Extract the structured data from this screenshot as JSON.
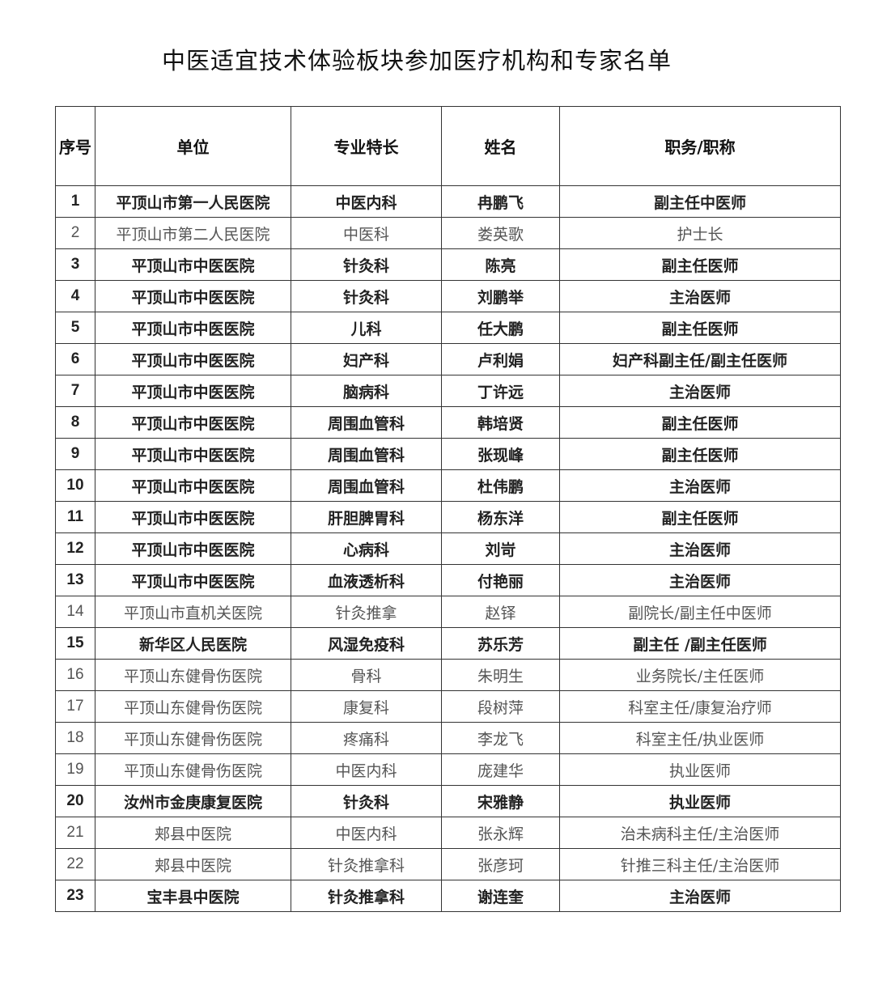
{
  "title": "中医适宜技术体验板块参加医疗机构和专家名单",
  "table": {
    "headers": [
      "序号",
      "单位",
      "专业特长",
      "姓名",
      "职务/职称"
    ],
    "rows": [
      {
        "no": "1",
        "unit": "平顶山市第一人民医院",
        "specialty": "中医内科",
        "name": "冉鹏飞",
        "title": "副主任中医师",
        "bold": true
      },
      {
        "no": "2",
        "unit": "平顶山市第二人民医院",
        "specialty": "中医科",
        "name": "娄英歌",
        "title": "护士长",
        "bold": false
      },
      {
        "no": "3",
        "unit": "平顶山市中医医院",
        "specialty": "针灸科",
        "name": "陈亮",
        "title": "副主任医师",
        "bold": true
      },
      {
        "no": "4",
        "unit": "平顶山市中医医院",
        "specialty": "针灸科",
        "name": "刘鹏举",
        "title": "主治医师",
        "bold": true
      },
      {
        "no": "5",
        "unit": "平顶山市中医医院",
        "specialty": "儿科",
        "name": "任大鹏",
        "title": "副主任医师",
        "bold": true
      },
      {
        "no": "6",
        "unit": "平顶山市中医医院",
        "specialty": "妇产科",
        "name": "卢利娟",
        "title": "妇产科副主任/副主任医师",
        "bold": true
      },
      {
        "no": "7",
        "unit": "平顶山市中医医院",
        "specialty": "脑病科",
        "name": "丁许远",
        "title": "主治医师",
        "bold": true
      },
      {
        "no": "8",
        "unit": "平顶山市中医医院",
        "specialty": "周围血管科",
        "name": "韩培贤",
        "title": "副主任医师",
        "bold": true
      },
      {
        "no": "9",
        "unit": "平顶山市中医医院",
        "specialty": "周围血管科",
        "name": "张现峰",
        "title": "副主任医师",
        "bold": true
      },
      {
        "no": "10",
        "unit": "平顶山市中医医院",
        "specialty": "周围血管科",
        "name": "杜伟鹏",
        "title": "主治医师",
        "bold": true
      },
      {
        "no": "11",
        "unit": "平顶山市中医医院",
        "specialty": "肝胆脾胃科",
        "name": "杨东洋",
        "title": "副主任医师",
        "bold": true
      },
      {
        "no": "12",
        "unit": "平顶山市中医医院",
        "specialty": "心病科",
        "name": "刘岢",
        "title": "主治医师",
        "bold": true
      },
      {
        "no": "13",
        "unit": "平顶山市中医医院",
        "specialty": "血液透析科",
        "name": "付艳丽",
        "title": "主治医师",
        "bold": true
      },
      {
        "no": "14",
        "unit": "平顶山市直机关医院",
        "specialty": "针灸推拿",
        "name": "赵铎",
        "title": "副院长/副主任中医师",
        "bold": false
      },
      {
        "no": "15",
        "unit": "新华区人民医院",
        "specialty": "风湿免疫科",
        "name": "苏乐芳",
        "title": "副主任 /副主任医师",
        "bold": true
      },
      {
        "no": "16",
        "unit": "平顶山东健骨伤医院",
        "specialty": "骨科",
        "name": "朱明生",
        "title": "业务院长/主任医师",
        "bold": false
      },
      {
        "no": "17",
        "unit": "平顶山东健骨伤医院",
        "specialty": "康复科",
        "name": "段树萍",
        "title": "科室主任/康复治疗师",
        "bold": false
      },
      {
        "no": "18",
        "unit": "平顶山东健骨伤医院",
        "specialty": "疼痛科",
        "name": "李龙飞",
        "title": "科室主任/执业医师",
        "bold": false
      },
      {
        "no": "19",
        "unit": "平顶山东健骨伤医院",
        "specialty": "中医内科",
        "name": "庞建华",
        "title": "执业医师",
        "bold": false
      },
      {
        "no": "20",
        "unit": "汝州市金庚康复医院",
        "specialty": "针灸科",
        "name": "宋雅静",
        "title": "执业医师",
        "bold": true
      },
      {
        "no": "21",
        "unit": "郏县中医院",
        "specialty": "中医内科",
        "name": "张永辉",
        "title": "治未病科主任/主治医师",
        "bold": false
      },
      {
        "no": "22",
        "unit": "郏县中医院",
        "specialty": "针灸推拿科",
        "name": "张彦珂",
        "title": "针推三科主任/主治医师",
        "bold": false
      },
      {
        "no": "23",
        "unit": "宝丰县中医院",
        "specialty": "针灸推拿科",
        "name": "谢连奎",
        "title": "主治医师",
        "bold": true
      }
    ]
  }
}
